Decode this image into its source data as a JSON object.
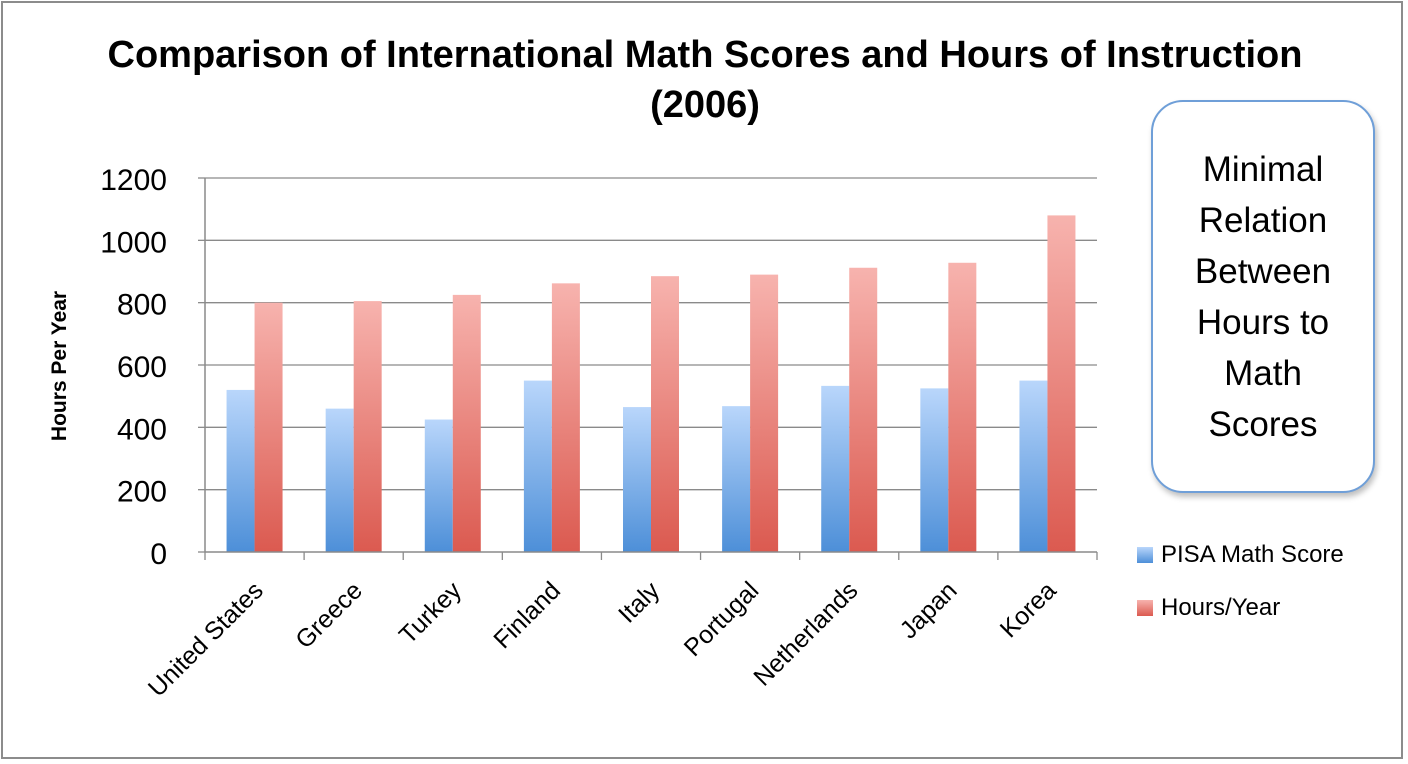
{
  "chart_data": {
    "type": "bar",
    "title": "Comparison of International Math Scores and Hours of Instruction (2006)",
    "xlabel": "",
    "ylabel": "Hours Per Year",
    "ylim": [
      0,
      1200
    ],
    "yticks": [
      0,
      200,
      400,
      600,
      800,
      1000,
      1200
    ],
    "grid": true,
    "legend_position": "right",
    "categories": [
      "United States",
      "Greece",
      "Turkey",
      "Finland",
      "Italy",
      "Portugal",
      "Netherlands",
      "Japan",
      "Korea"
    ],
    "series": [
      {
        "name": "PISA Math Score",
        "values": [
          520,
          460,
          425,
          550,
          465,
          468,
          533,
          525,
          550
        ],
        "color": "#5b9be0"
      },
      {
        "name": "Hours/Year",
        "values": [
          800,
          805,
          825,
          862,
          885,
          890,
          912,
          928,
          1080
        ],
        "color": "#e06b60"
      }
    ],
    "annotation": "Minimal Relation Between Hours to Math Scores"
  }
}
